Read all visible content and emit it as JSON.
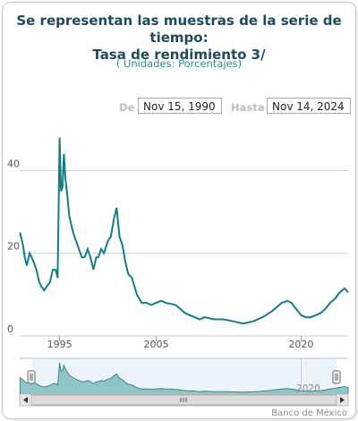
{
  "header": {
    "title_line1": "Se representan las muestras de la serie de tiempo:",
    "title_line2": "Tasa de rendimiento 3/",
    "units": "( Unidades:  Porcentajes)"
  },
  "range": {
    "from_label": "De",
    "from_value": "Nov 15, 1990",
    "to_label": "Hasta",
    "to_value": "Nov 14, 2024"
  },
  "footer": {
    "credit": "Banco de México"
  },
  "colors": {
    "line": "#137d86",
    "navigator_fill": "#8fc5c6",
    "grid": "#cccccc"
  },
  "chart_data": {
    "type": "line",
    "ylim": [
      0,
      52
    ],
    "xlim": [
      1990.87,
      2024.87
    ],
    "y_ticks": [
      0,
      20,
      40
    ],
    "x_ticks": [
      1995,
      2005,
      2020
    ],
    "navigator_tick": 2020,
    "grid": true,
    "series": [
      {
        "x": [
          1990.9,
          1991.0,
          1991.2,
          1991.4,
          1991.6,
          1991.9,
          1992.1,
          1992.3,
          1992.6,
          1992.9,
          1993.1,
          1993.4,
          1993.7,
          1994.0,
          1994.3,
          1994.6,
          1994.8,
          1995.0,
          1995.15,
          1995.3,
          1995.45,
          1995.6,
          1995.8,
          1996.0,
          1996.2,
          1996.4,
          1996.7,
          1997.0,
          1997.3,
          1997.6,
          1997.9,
          1998.2,
          1998.5,
          1998.8,
          1999.0,
          1999.3,
          1999.6,
          2000.0,
          2000.3,
          2000.6,
          2000.9,
          2001.2,
          2001.5,
          2001.8,
          2002.1,
          2002.5,
          2003.0,
          2003.5,
          2004.0,
          2004.5,
          2005.0,
          2005.5,
          2006.0,
          2007.0,
          2008.0,
          2008.5,
          2009.0,
          2009.5,
          2010.0,
          2011.0,
          2012.0,
          2013.0,
          2014.0,
          2015.0,
          2016.0,
          2017.0,
          2018.0,
          2018.6,
          2019.0,
          2019.5,
          2020.0,
          2020.5,
          2021.0,
          2021.5,
          2022.0,
          2022.5,
          2023.0,
          2023.5,
          2024.0,
          2024.5,
          2024.87
        ],
        "y": [
          25,
          24,
          22,
          19,
          17,
          20,
          19,
          18,
          16,
          13,
          12,
          11,
          12,
          13,
          16,
          16,
          14,
          48,
          35,
          36,
          44,
          38,
          34,
          29,
          27,
          25,
          23,
          21,
          19,
          19,
          21,
          19,
          16,
          19,
          19,
          21,
          20,
          23,
          24,
          28,
          31,
          24,
          22,
          18,
          15,
          14,
          10,
          8,
          8,
          7.5,
          8,
          8.5,
          8,
          7.5,
          5.5,
          5,
          4.5,
          4,
          4.5,
          4,
          4,
          3.5,
          3,
          3.5,
          4.5,
          6,
          8,
          8.5,
          8,
          6.5,
          5,
          4.5,
          4.5,
          5,
          5.5,
          6.5,
          8,
          9,
          10.5,
          11.5,
          10.5
        ]
      }
    ]
  }
}
